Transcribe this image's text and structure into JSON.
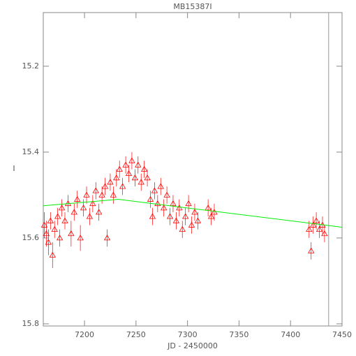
{
  "chart_data": {
    "type": "scatter",
    "title": "MB15387I",
    "x_label": "JD - 2450000",
    "y_label": "I",
    "xlim": [
      7160,
      7450
    ],
    "xticks": [
      7200,
      7250,
      7300,
      7350,
      7400,
      7450
    ],
    "ylim": [
      15.805,
      15.075
    ],
    "yticks": [
      15.2,
      15.4,
      15.6,
      15.8
    ],
    "series": [
      {
        "color": "#ff0000",
        "x": [
          7161,
          7163,
          7165,
          7167,
          7169,
          7171,
          7174,
          7176,
          7178,
          7181,
          7184,
          7187,
          7190,
          7193,
          7196,
          7199,
          7202,
          7205,
          7208,
          7211,
          7214,
          7217,
          7220,
          7222,
          7225,
          7228,
          7231,
          7234,
          7237,
          7240,
          7243,
          7246,
          7249,
          7252,
          7255,
          7258,
          7261,
          7264,
          7266,
          7268,
          7271,
          7274,
          7277,
          7280,
          7283,
          7286,
          7289,
          7292,
          7295,
          7298,
          7301,
          7304,
          7307,
          7310,
          7320,
          7323,
          7326,
          7418,
          7420,
          7422,
          7425,
          7428,
          7431,
          7433
        ],
        "values": [
          15.57,
          15.59,
          15.61,
          15.56,
          15.64,
          15.58,
          15.55,
          15.6,
          15.53,
          15.56,
          15.52,
          15.59,
          15.54,
          15.51,
          15.6,
          15.53,
          15.5,
          15.55,
          15.52,
          15.49,
          15.54,
          15.5,
          15.48,
          15.6,
          15.47,
          15.5,
          15.46,
          15.44,
          15.48,
          15.43,
          15.45,
          15.42,
          15.46,
          15.43,
          15.47,
          15.44,
          15.46,
          15.51,
          15.55,
          15.49,
          15.52,
          15.48,
          15.53,
          15.5,
          15.55,
          15.52,
          15.56,
          15.53,
          15.58,
          15.55,
          15.52,
          15.57,
          15.54,
          15.56,
          15.53,
          15.55,
          15.54,
          15.58,
          15.63,
          15.57,
          15.56,
          15.58,
          15.57,
          15.59
        ],
        "errors": [
          0.03,
          0.03,
          0.03,
          0.02,
          0.03,
          0.02,
          0.02,
          0.02,
          0.02,
          0.02,
          0.02,
          0.03,
          0.02,
          0.02,
          0.03,
          0.02,
          0.02,
          0.02,
          0.02,
          0.02,
          0.02,
          0.02,
          0.02,
          0.02,
          0.02,
          0.02,
          0.02,
          0.02,
          0.02,
          0.02,
          0.02,
          0.02,
          0.02,
          0.02,
          0.02,
          0.02,
          0.02,
          0.02,
          0.02,
          0.02,
          0.02,
          0.02,
          0.02,
          0.02,
          0.02,
          0.02,
          0.02,
          0.02,
          0.02,
          0.02,
          0.02,
          0.02,
          0.02,
          0.02,
          0.02,
          0.02,
          0.02,
          0.02,
          0.02,
          0.02,
          0.02,
          0.02,
          0.02,
          0.02
        ]
      },
      {
        "color": "#00ee00",
        "x": [
          7160,
          7233,
          7450
        ],
        "values": [
          15.525,
          15.51,
          15.575
        ]
      }
    ],
    "vline": {
      "x": 7437,
      "color": "#999999"
    }
  }
}
